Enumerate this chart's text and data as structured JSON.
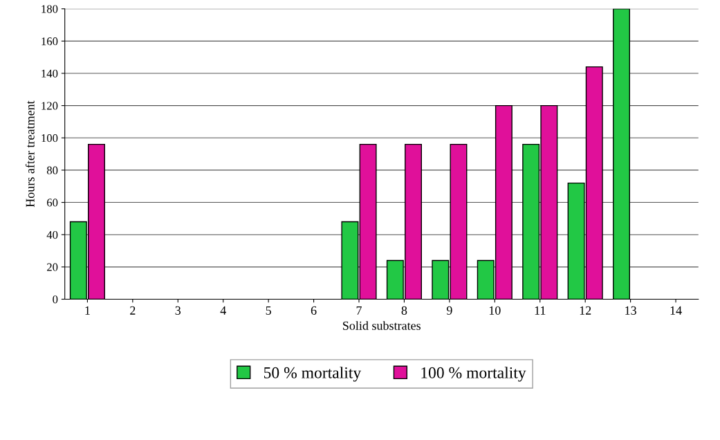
{
  "chart_data": {
    "type": "bar",
    "xlabel": "Solid substrates",
    "ylabel": "Hours after treatment",
    "categories": [
      "1",
      "2",
      "3",
      "4",
      "5",
      "6",
      "7",
      "8",
      "9",
      "10",
      "11",
      "12",
      "13",
      "14"
    ],
    "series": [
      {
        "name": "50 % mortality",
        "color": "#22c845",
        "values": [
          48,
          null,
          null,
          null,
          null,
          null,
          48,
          24,
          24,
          24,
          96,
          72,
          180,
          null
        ]
      },
      {
        "name": "100 % mortality",
        "color": "#e0109a",
        "values": [
          96,
          null,
          null,
          null,
          null,
          null,
          96,
          96,
          96,
          120,
          120,
          144,
          null,
          null
        ]
      }
    ],
    "ylim": [
      0,
      180
    ],
    "yticks": [
      0,
      20,
      40,
      60,
      80,
      100,
      120,
      140,
      160,
      180
    ],
    "grid": "y",
    "legend": "bottom"
  }
}
